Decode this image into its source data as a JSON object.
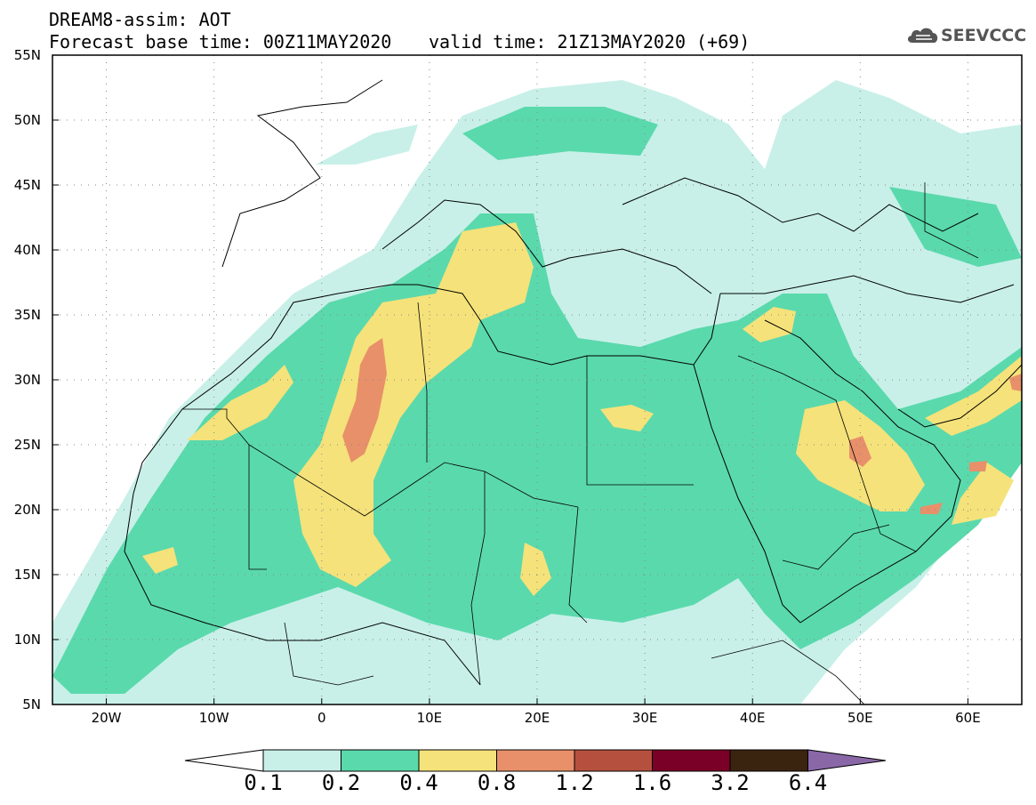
{
  "header": {
    "line1": "DREAM8-assim: AOT",
    "line2": "Forecast base time: 00Z11MAY2020",
    "line3": "valid time: 21Z13MAY2020 (+69)"
  },
  "logo": {
    "text": "SEEVCCC",
    "icon": "cloud-icon",
    "color": "#555555"
  },
  "map": {
    "projection": "lat-lon",
    "lon_range": [
      -25,
      65
    ],
    "lat_range": [
      5,
      55
    ],
    "grid": true,
    "lat_labels": [
      "55N",
      "50N",
      "45N",
      "40N",
      "35N",
      "30N",
      "25N",
      "20N",
      "15N",
      "10N",
      "5N"
    ],
    "lon_labels": [
      "20W",
      "10W",
      "0",
      "10E",
      "20E",
      "30E",
      "40E",
      "50E",
      "60E"
    ]
  },
  "colorbar": {
    "ticks": [
      "0.1",
      "0.2",
      "0.4",
      "0.8",
      "1.2",
      "1.6",
      "3.2",
      "6.4"
    ],
    "colors": [
      "#ffffff",
      "#c8f0e8",
      "#5ad9ad",
      "#f5e27a",
      "#e8906a",
      "#b6503e",
      "#7a0028",
      "#3a2410",
      "#8a68a8"
    ]
  },
  "field_colors": {
    "low": "#c8f0e8",
    "mid": "#5ad9ad",
    "high": "#f5e27a",
    "vhigh": "#e8906a"
  }
}
